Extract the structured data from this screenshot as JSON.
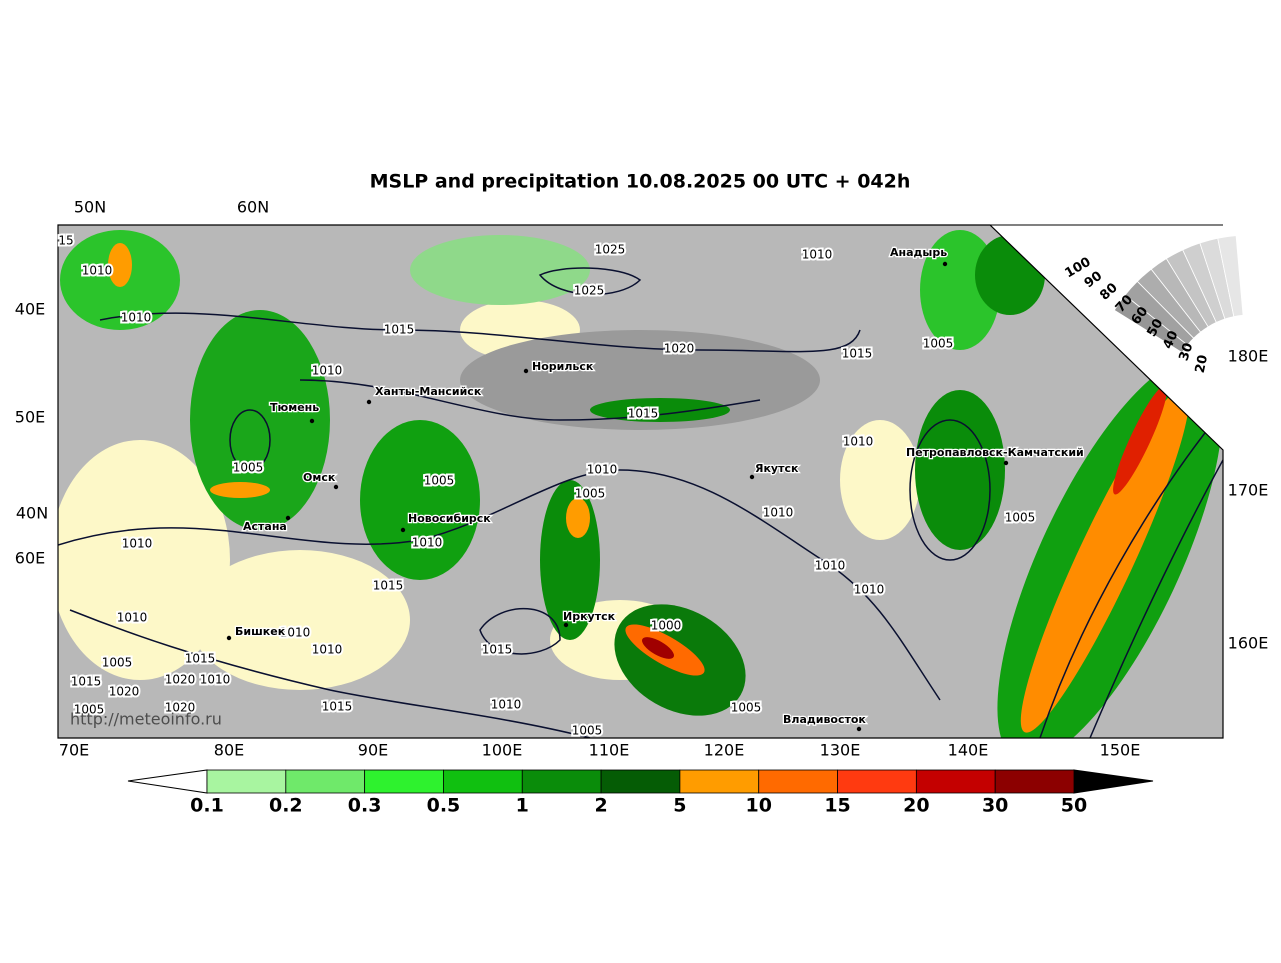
{
  "title": "MSLP and precipitation 10.08.2025 00 UTC + 042h",
  "top_labels": [
    "50N",
    "60N"
  ],
  "left_labels": [
    "40E",
    "50E",
    "40N",
    "60E"
  ],
  "right_labels": [
    "180E",
    "170E",
    "160E"
  ],
  "bottom_labels": [
    "70E",
    "80E",
    "90E",
    "100E",
    "110E",
    "120E",
    "130E",
    "140E",
    "150E"
  ],
  "cities": [
    "Анадырь",
    "Норильск",
    "Ханты-Мансийск",
    "Тюмень",
    "Якутск",
    "Петропавловск-Камчатский",
    "Омск",
    "Астана",
    "Новосибирск",
    "Иркутск",
    "Бишкек",
    "Владивосток"
  ],
  "isobar_labels": [
    15,
    1010,
    1010,
    1025,
    1025,
    1010,
    1015,
    1020,
    1015,
    1005,
    1010,
    1015,
    1010,
    1005,
    1010,
    1005,
    1005,
    1010,
    1005,
    1010,
    1010,
    1010,
    1010,
    1015,
    1010,
    1010,
    1000,
    1005,
    1015,
    1010,
    1015,
    1015,
    1020,
    1020,
    1010,
    1005,
    1020,
    1015,
    1010,
    1005,
    1005
  ],
  "scale_labels": [
    100,
    90,
    80,
    70,
    60,
    50,
    40,
    30,
    20
  ],
  "watermark": "http://meteoinfo.ru",
  "colorbar": {
    "levels": [
      0.1,
      0.2,
      0.3,
      0.5,
      1,
      2,
      5,
      10,
      15,
      20,
      30,
      50
    ],
    "colors": [
      "#a8f5a0",
      "#6fe96a",
      "#2ef22e",
      "#10c010",
      "#0a8c0a",
      "#055c05",
      "#ff9c00",
      "#ff6a00",
      "#ff3a10",
      "#c40000",
      "#8c0000"
    ]
  }
}
